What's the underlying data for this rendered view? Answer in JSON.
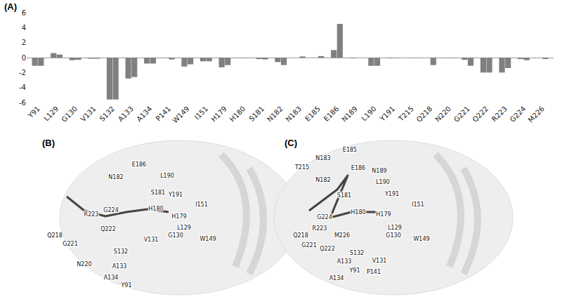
{
  "chart_data": {
    "type": "bar",
    "panel_label": "(A)",
    "categories": [
      "Y91",
      "L129",
      "G130",
      "V131",
      "S132",
      "A133",
      "A134",
      "P141",
      "W149",
      "I151",
      "H179",
      "H180",
      "S181",
      "N182",
      "N183",
      "E185",
      "E186",
      "N189",
      "L190",
      "Y191",
      "T215",
      "Q218",
      "N220",
      "G221",
      "Q222",
      "R223",
      "G224",
      "M226"
    ],
    "series": [
      {
        "color": "#808080",
        "values": [
          -1.1,
          0.6,
          -0.35,
          -0.15,
          -5.6,
          -2.8,
          -0.8,
          -0.05,
          -1.2,
          -0.5,
          -1.3,
          -0.05,
          -0.2,
          -0.6,
          0.0,
          0.0,
          1.0,
          -0.1,
          -1.1,
          -0.1,
          0.0,
          0.0,
          -0.05,
          -0.3,
          -2.0,
          -2.0,
          -0.2,
          0.0
        ]
      },
      {
        "color": "#808080",
        "values": [
          -1.1,
          0.4,
          -0.3,
          -0.15,
          -5.6,
          -2.6,
          -0.8,
          -0.25,
          -0.9,
          -0.5,
          -1.0,
          -0.05,
          -0.25,
          -1.0,
          0.15,
          0.2,
          4.5,
          0.0,
          -1.1,
          -0.05,
          -0.05,
          -1.0,
          -0.05,
          -1.1,
          -2.0,
          -1.4,
          -0.35,
          -0.2
        ]
      }
    ],
    "ylim": [
      -6,
      6
    ],
    "yticks": [
      -6,
      -4,
      -2,
      0,
      2,
      4,
      6
    ],
    "grid": false
  },
  "panels": [
    {
      "label": "(B)",
      "residues": [
        "E186",
        "N182",
        "S181",
        "L190",
        "Y191",
        "H180",
        "I151",
        "R223",
        "G224",
        "H179",
        "L129",
        "Q218",
        "Q222",
        "G130",
        "W149",
        "G221",
        "V131",
        "S132",
        "N220",
        "A133",
        "A134",
        "Y91"
      ]
    },
    {
      "label": "(C)",
      "residues": [
        "E185",
        "N183",
        "E186",
        "N189",
        "T215",
        "N182",
        "L190",
        "Y191",
        "S181",
        "H180",
        "I151",
        "G224",
        "H179",
        "R223",
        "L129",
        "M226",
        "Q218",
        "G221",
        "Q222",
        "G130",
        "S132",
        "W149",
        "A133",
        "V131",
        "Y91",
        "P141",
        "A134"
      ]
    }
  ]
}
